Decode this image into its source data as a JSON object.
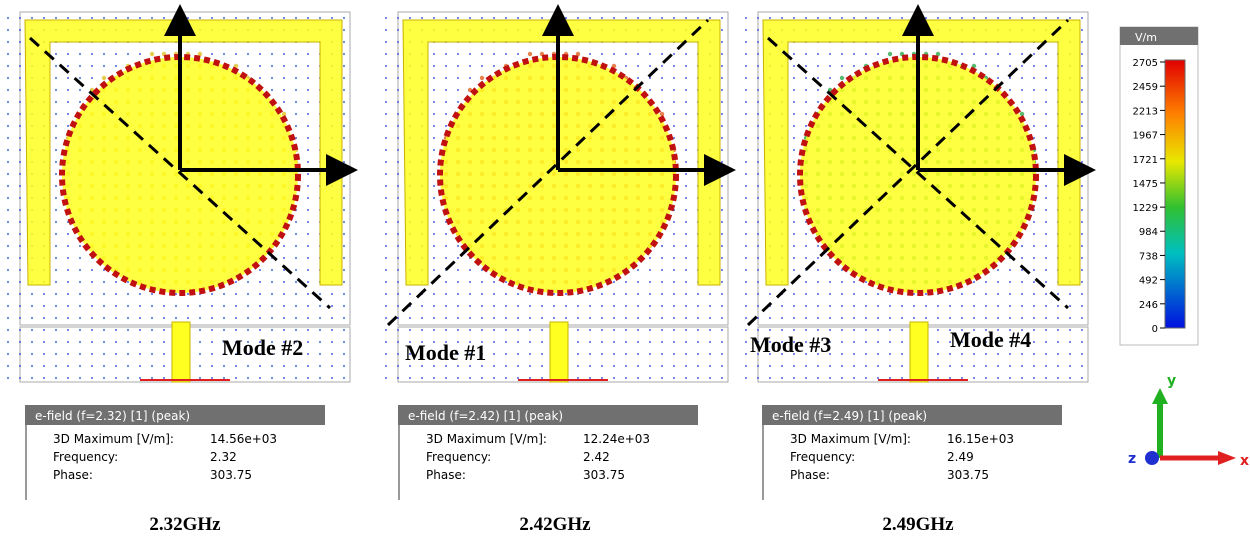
{
  "panels": [
    {
      "modes": [
        "Mode #2"
      ],
      "info": {
        "title": "e-field (f=2.32) [1] (peak)",
        "rows": [
          [
            "3D Maximum [V/m]:",
            "14.56e+03"
          ],
          [
            "Frequency:",
            "2.32"
          ],
          [
            "Phase:",
            "303.75"
          ]
        ]
      },
      "caption": "2.32GHz"
    },
    {
      "modes": [
        "Mode #1"
      ],
      "info": {
        "title": "e-field (f=2.42) [1] (peak)",
        "rows": [
          [
            "3D Maximum [V/m]:",
            "12.24e+03"
          ],
          [
            "Frequency:",
            "2.42"
          ],
          [
            "Phase:",
            "303.75"
          ]
        ]
      },
      "caption": "2.42GHz"
    },
    {
      "modes": [
        "Mode #3",
        "Mode #4"
      ],
      "info": {
        "title": "e-field (f=2.49) [1] (peak)",
        "rows": [
          [
            "3D Maximum [V/m]:",
            "16.15e+03"
          ],
          [
            "Frequency:",
            "2.49"
          ],
          [
            "Phase:",
            "303.75"
          ]
        ]
      },
      "caption": "2.49GHz"
    }
  ],
  "colorbar": {
    "unit": "V/m",
    "ticks": [
      2705,
      2459,
      2213,
      1967,
      1721,
      1475,
      1229,
      984,
      738,
      492,
      246,
      0
    ]
  },
  "axes": {
    "y": "y",
    "z": "z",
    "x": "x"
  }
}
